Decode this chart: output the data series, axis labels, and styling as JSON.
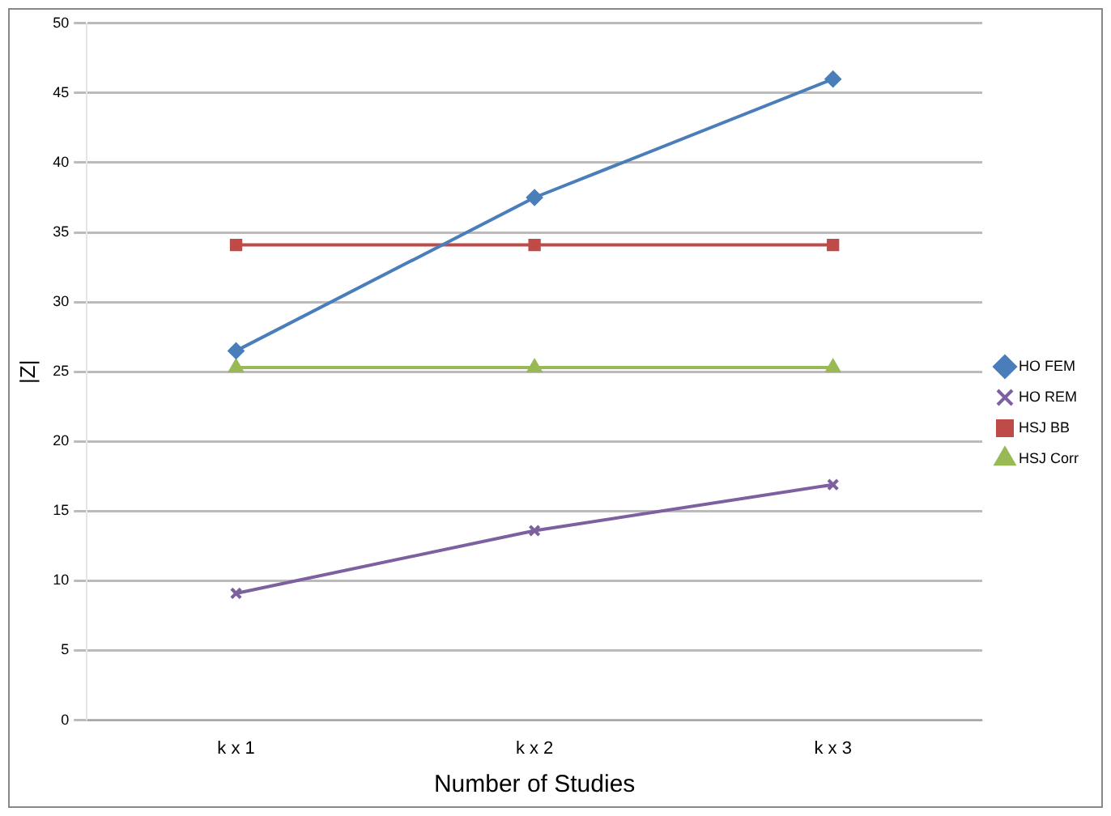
{
  "chart_data": {
    "type": "line",
    "xlabel": "Number of Studies",
    "ylabel": "|Z|",
    "categories": [
      "k x 1",
      "k x 2",
      "k x 3"
    ],
    "ylim": [
      0,
      50
    ],
    "yticks": [
      0,
      5,
      10,
      15,
      20,
      25,
      30,
      35,
      40,
      45,
      50
    ],
    "grid": "y",
    "legend": "right",
    "series": [
      {
        "name": "HO FEM",
        "color": "#4a7ebb",
        "marker": "diamond",
        "values": [
          26.5,
          37.5,
          46
        ]
      },
      {
        "name": "HO REM",
        "color": "#7d60a0",
        "marker": "cross",
        "values": [
          9.1,
          13.6,
          16.9
        ]
      },
      {
        "name": "HSJ BB",
        "color": "#be4b48",
        "marker": "square",
        "values": [
          34.1,
          34.1,
          34.1
        ]
      },
      {
        "name": "HSJ Corr",
        "color": "#98b954",
        "marker": "triangle",
        "values": [
          25.3,
          25.3,
          25.3
        ]
      }
    ]
  }
}
